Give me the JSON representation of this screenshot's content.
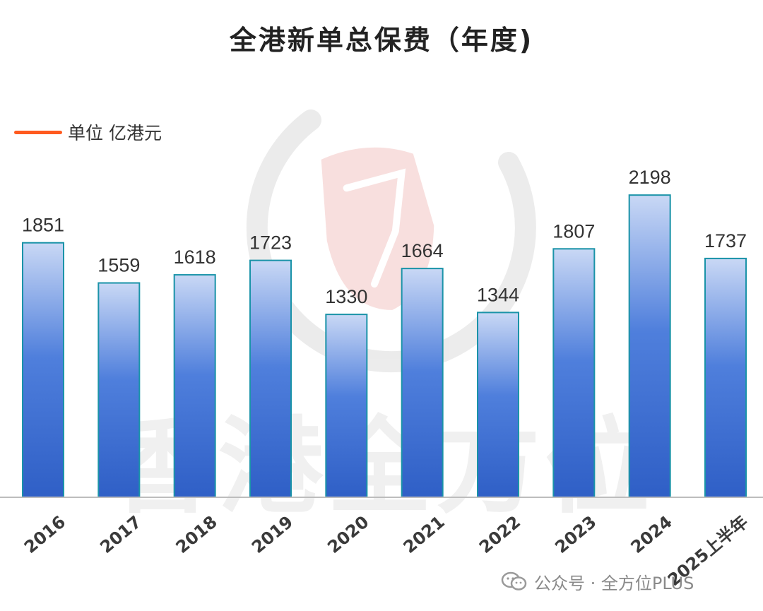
{
  "chart_data": {
    "type": "bar",
    "title": "全港新单总保费（年度)",
    "categories": [
      "2016",
      "2017",
      "2018",
      "2019",
      "2020",
      "2021",
      "2022",
      "2023",
      "2024",
      "2025上半年"
    ],
    "values": [
      1851,
      1559,
      1618,
      1723,
      1330,
      1664,
      1344,
      1807,
      2198,
      1737
    ],
    "legend": {
      "label": "单位 亿港元",
      "placement": "top-left",
      "color": "#ff5a1f"
    },
    "ylim": [
      0,
      2240
    ],
    "grid": false,
    "colors": {
      "bar_top": "#c9d8f5",
      "bar_bottom": "#2f5fc6",
      "bar_stroke": "#1a93a8",
      "baseline": "#bdbdbd"
    }
  },
  "watermark": {
    "text": "香港全方位"
  },
  "footer": {
    "icon": "wechat-icon",
    "text": "公众号 · 全方位PLUS"
  }
}
